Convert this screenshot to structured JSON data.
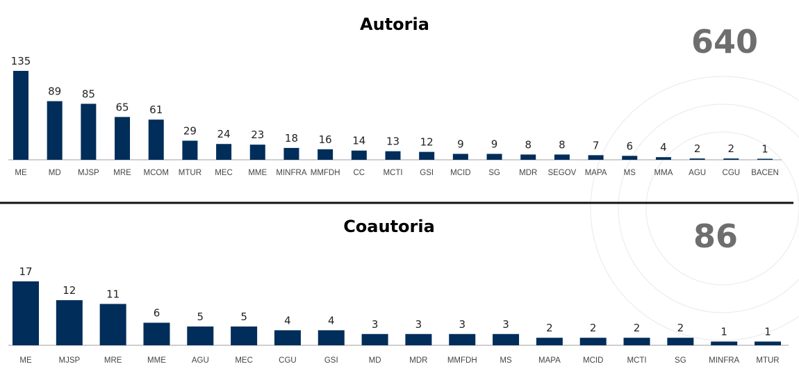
{
  "chart_data": [
    {
      "type": "bar",
      "title": "Autoria",
      "total": "640",
      "categories": [
        "ME",
        "MD",
        "MJSP",
        "MRE",
        "MCOM",
        "MTUR",
        "MEC",
        "MME",
        "MINFRA",
        "MMFDH",
        "CC",
        "MCTI",
        "GSI",
        "MCID",
        "SG",
        "MDR",
        "SEGOV",
        "MAPA",
        "MS",
        "MMA",
        "AGU",
        "CGU",
        "BACEN"
      ],
      "values": [
        135,
        89,
        85,
        65,
        61,
        29,
        24,
        23,
        18,
        16,
        14,
        13,
        12,
        9,
        9,
        8,
        8,
        7,
        6,
        4,
        2,
        2,
        1
      ],
      "xlabel": "",
      "ylabel": "",
      "ylim": [
        0,
        135
      ],
      "grid": false,
      "color": "#002d5a"
    },
    {
      "type": "bar",
      "title": "Coautoria",
      "total": "86",
      "categories": [
        "ME",
        "MJSP",
        "MRE",
        "MME",
        "AGU",
        "MEC",
        "CGU",
        "GSI",
        "MD",
        "MDR",
        "MMFDH",
        "MS",
        "MAPA",
        "MCID",
        "MCTI",
        "SG",
        "MINFRA",
        "MTUR"
      ],
      "values": [
        17,
        12,
        11,
        6,
        5,
        5,
        4,
        4,
        3,
        3,
        3,
        3,
        2,
        2,
        2,
        2,
        1,
        1
      ],
      "xlabel": "",
      "ylabel": "",
      "ylim": [
        0,
        17
      ],
      "grid": false,
      "color": "#002d5a"
    }
  ]
}
